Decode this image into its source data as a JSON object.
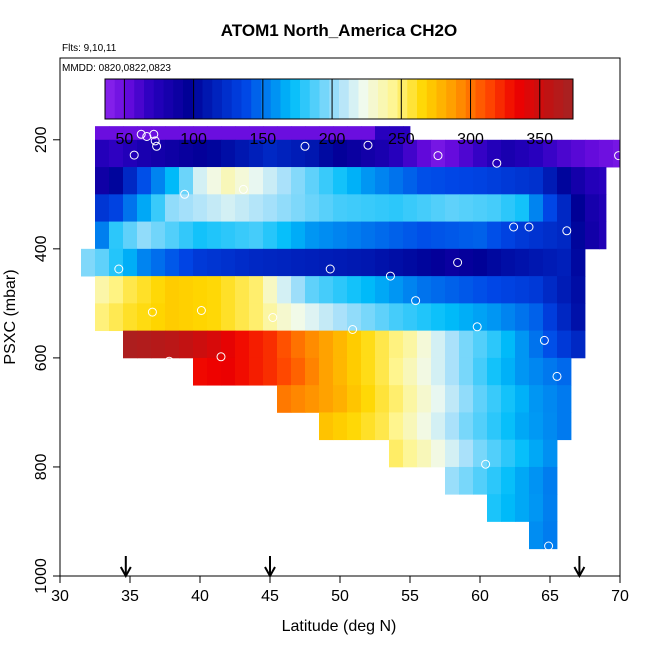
{
  "chart_data": {
    "type": "heatmap",
    "title": "ATOM1 North_America CH2O",
    "flights_note": "Flts: 9,10,11",
    "dates_note": "MMDD: 0820,0822,0823",
    "xlabel": "Latitude (deg N)",
    "ylabel": "PSXC (mbar)",
    "xlim": [
      30,
      70
    ],
    "ylim": [
      1000,
      50
    ],
    "x_ticks": [
      "30",
      "35",
      "40",
      "45",
      "50",
      "55",
      "60",
      "65",
      "70"
    ],
    "y_ticks": [
      "200",
      "400",
      "600",
      "800",
      "1000"
    ],
    "colorbar": {
      "range": [
        36,
        374
      ],
      "ticks": [
        "50",
        "100",
        "150",
        "200",
        "250",
        "300",
        "350"
      ]
    },
    "arrow_latitudes": [
      34.7,
      45,
      67.1
    ],
    "rows": [
      {
        "p": 200,
        "x0": 32.5,
        "x1": 52.5,
        "v": 50
      },
      {
        "p": 200,
        "x0": 52.5,
        "x1": 55,
        "v": 70
      },
      {
        "p": 225,
        "x0": 32.5,
        "x1": 70,
        "pts": [
          [
            32.5,
            75
          ],
          [
            34,
            68
          ],
          [
            36,
            80
          ],
          [
            40,
            95
          ],
          [
            45,
            120
          ],
          [
            48,
            110
          ],
          [
            50,
            95
          ],
          [
            53,
            80
          ],
          [
            57,
            45
          ],
          [
            62,
            80
          ],
          [
            66,
            60
          ],
          [
            70,
            45
          ]
        ]
      },
      {
        "p": 275,
        "x0": 32.5,
        "x1": 69,
        "pts": [
          [
            32.5,
            80
          ],
          [
            34,
            100
          ],
          [
            36,
            140
          ],
          [
            38,
            170
          ],
          [
            40,
            215
          ],
          [
            42,
            235
          ],
          [
            44,
            220
          ],
          [
            48,
            190
          ],
          [
            52,
            160
          ],
          [
            56,
            140
          ],
          [
            60,
            135
          ],
          [
            64,
            125
          ],
          [
            66,
            100
          ],
          [
            67.5,
            75
          ],
          [
            69,
            70
          ]
        ]
      },
      {
        "p": 325,
        "x0": 32.5,
        "x1": 69,
        "pts": [
          [
            32.5,
            125
          ],
          [
            34,
            135
          ],
          [
            36,
            165
          ],
          [
            38,
            200
          ],
          [
            42,
            215
          ],
          [
            46,
            200
          ],
          [
            50,
            185
          ],
          [
            54,
            180
          ],
          [
            58,
            190
          ],
          [
            61,
            185
          ],
          [
            63,
            175
          ],
          [
            64,
            155
          ],
          [
            66,
            120
          ],
          [
            67.5,
            85
          ],
          [
            69,
            75
          ]
        ]
      },
      {
        "p": 375,
        "x0": 32.5,
        "x1": 69,
        "pts": [
          [
            32.5,
            140
          ],
          [
            34,
            180
          ],
          [
            36,
            200
          ],
          [
            40,
            175
          ],
          [
            44,
            185
          ],
          [
            48,
            160
          ],
          [
            52,
            150
          ],
          [
            56,
            140
          ],
          [
            60,
            145
          ],
          [
            63,
            130
          ],
          [
            66,
            120
          ],
          [
            67.5,
            90
          ],
          [
            69,
            75
          ]
        ]
      },
      {
        "p": 425,
        "x0": 31.5,
        "x1": 67.5,
        "pts": [
          [
            31.5,
            200
          ],
          [
            33,
            190
          ],
          [
            36,
            155
          ],
          [
            40,
            130
          ],
          [
            44,
            120
          ],
          [
            48,
            115
          ],
          [
            52,
            110
          ],
          [
            56,
            100
          ],
          [
            58,
            90
          ],
          [
            62,
            105
          ],
          [
            66,
            115
          ],
          [
            67.5,
            95
          ]
        ]
      },
      {
        "p": 475,
        "x0": 32.5,
        "x1": 67.5,
        "pts": [
          [
            32.5,
            235
          ],
          [
            35,
            255
          ],
          [
            38,
            270
          ],
          [
            41,
            265
          ],
          [
            44,
            250
          ],
          [
            46,
            215
          ],
          [
            48,
            190
          ],
          [
            52,
            170
          ],
          [
            56,
            150
          ],
          [
            60,
            140
          ],
          [
            64,
            130
          ],
          [
            67.5,
            100
          ]
        ]
      },
      {
        "p": 525,
        "x0": 32.5,
        "x1": 67.5,
        "pts": [
          [
            32.5,
            245
          ],
          [
            35,
            260
          ],
          [
            38,
            270
          ],
          [
            41,
            265
          ],
          [
            44,
            250
          ],
          [
            46,
            230
          ],
          [
            50,
            205
          ],
          [
            54,
            185
          ],
          [
            58,
            170
          ],
          [
            61,
            160
          ],
          [
            64,
            145
          ],
          [
            67.5,
            100
          ]
        ]
      },
      {
        "p": 575,
        "x0": 34.5,
        "x1": 67.5,
        "pts": [
          [
            34.5,
            370
          ],
          [
            38,
            360
          ],
          [
            41,
            345
          ],
          [
            43,
            330
          ],
          [
            45,
            320
          ],
          [
            47,
            300
          ],
          [
            49,
            285
          ],
          [
            51,
            270
          ],
          [
            53,
            255
          ],
          [
            55,
            240
          ],
          [
            57,
            215
          ],
          [
            59,
            195
          ],
          [
            61,
            180
          ],
          [
            63,
            160
          ],
          [
            65,
            140
          ],
          [
            67.5,
            115
          ]
        ]
      },
      {
        "p": 625,
        "x0": 39.5,
        "x1": 66.5,
        "pts": [
          [
            39.5,
            330
          ],
          [
            42,
            335
          ],
          [
            45,
            320
          ],
          [
            47,
            305
          ],
          [
            49,
            285
          ],
          [
            51,
            270
          ],
          [
            53,
            255
          ],
          [
            55,
            235
          ],
          [
            57,
            215
          ],
          [
            59,
            195
          ],
          [
            61,
            175
          ],
          [
            63,
            160
          ],
          [
            66.5,
            145
          ]
        ]
      },
      {
        "p": 675,
        "x0": 45.5,
        "x1": 66.5,
        "pts": [
          [
            45.5,
            300
          ],
          [
            48,
            290
          ],
          [
            50,
            280
          ],
          [
            52,
            265
          ],
          [
            54,
            250
          ],
          [
            56,
            230
          ],
          [
            58,
            210
          ],
          [
            60,
            190
          ],
          [
            62,
            175
          ],
          [
            64,
            160
          ],
          [
            66.5,
            150
          ]
        ]
      },
      {
        "p": 725,
        "x0": 48.5,
        "x1": 66.5,
        "pts": [
          [
            48.5,
            275
          ],
          [
            51,
            265
          ],
          [
            53,
            255
          ],
          [
            55,
            235
          ],
          [
            57,
            215
          ],
          [
            59,
            195
          ],
          [
            61,
            180
          ],
          [
            63,
            165
          ],
          [
            66.5,
            150
          ]
        ]
      },
      {
        "p": 775,
        "x0": 53.5,
        "x1": 65.5,
        "pts": [
          [
            53.5,
            255
          ],
          [
            56,
            235
          ],
          [
            58,
            215
          ],
          [
            60,
            195
          ],
          [
            62,
            180
          ],
          [
            64,
            165
          ],
          [
            65.5,
            155
          ]
        ]
      },
      {
        "p": 825,
        "x0": 57.5,
        "x1": 65.5,
        "pts": [
          [
            57.5,
            205
          ],
          [
            59,
            195
          ],
          [
            61,
            180
          ],
          [
            63,
            165
          ],
          [
            65.5,
            150
          ]
        ]
      },
      {
        "p": 875,
        "x0": 60.5,
        "x1": 65.5,
        "pts": [
          [
            60.5,
            180
          ],
          [
            62,
            170
          ],
          [
            64,
            160
          ],
          [
            65.5,
            150
          ]
        ]
      },
      {
        "p": 925,
        "x0": 63.5,
        "x1": 65.5,
        "pts": [
          [
            63.5,
            160
          ],
          [
            65.5,
            150
          ]
        ]
      }
    ],
    "observations": [
      [
        35.8,
        190
      ],
      [
        36.2,
        194
      ],
      [
        36.7,
        190
      ],
      [
        36.8,
        202
      ],
      [
        36.9,
        212
      ],
      [
        35.3,
        228
      ],
      [
        47.5,
        212
      ],
      [
        52,
        210
      ],
      [
        57,
        229
      ],
      [
        61.2,
        243
      ],
      [
        69.9,
        229
      ],
      [
        38.9,
        300
      ],
      [
        43.1,
        291
      ],
      [
        62.4,
        360
      ],
      [
        63.5,
        360
      ],
      [
        66.2,
        367
      ],
      [
        34.2,
        437
      ],
      [
        49.3,
        437
      ],
      [
        53.6,
        450
      ],
      [
        58.4,
        425
      ],
      [
        36.6,
        516
      ],
      [
        40.1,
        513
      ],
      [
        45.2,
        526
      ],
      [
        55.4,
        495
      ],
      [
        59.8,
        543
      ],
      [
        50.9,
        548
      ],
      [
        64.6,
        568
      ],
      [
        37.8,
        606
      ],
      [
        41.5,
        598
      ],
      [
        65.5,
        634
      ],
      [
        60.4,
        795
      ],
      [
        64.9,
        945
      ]
    ]
  }
}
